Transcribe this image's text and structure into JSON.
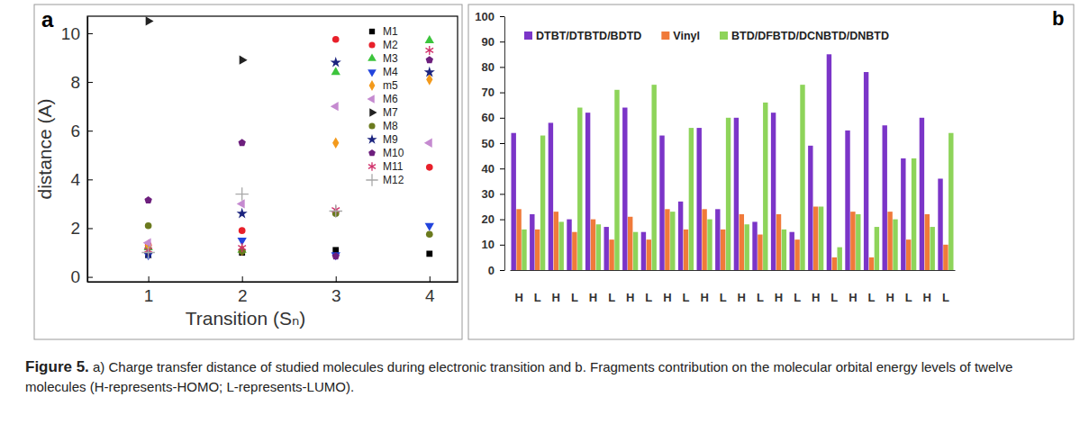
{
  "chart_data": [
    {
      "type": "scatter",
      "panel": "a",
      "x_label": "Transition (Sₙ)",
      "y_label": "distance (A)",
      "x": [
        1,
        2,
        3,
        4
      ],
      "xlim": [
        0.35,
        4.3
      ],
      "xticks": [
        1,
        2,
        3,
        4
      ],
      "ylim": [
        -0.2,
        10.7
      ],
      "yticks": [
        0,
        2,
        4,
        6,
        8,
        10
      ],
      "legend": "top-right",
      "series": [
        {
          "name": "M1",
          "color": "#000000",
          "marker": "square",
          "values": [
            0.9,
            1.0,
            1.1,
            0.95
          ]
        },
        {
          "name": "M2",
          "color": "#e8202a",
          "marker": "circle",
          "values": [
            1.3,
            1.9,
            9.75,
            4.5
          ]
        },
        {
          "name": "M3",
          "color": "#3cc43c",
          "marker": "triangle-up",
          "values": [
            1.2,
            1.1,
            8.4,
            9.7
          ]
        },
        {
          "name": "M4",
          "color": "#2244dd",
          "marker": "triangle-down",
          "values": [
            0.9,
            1.5,
            0.9,
            2.1
          ]
        },
        {
          "name": "m5",
          "color": "#f39a1c",
          "marker": "diamond",
          "values": [
            1.3,
            1.1,
            5.5,
            8.1
          ]
        },
        {
          "name": "M6",
          "color": "#c58ad0",
          "marker": "triangle-left",
          "values": [
            1.4,
            3.0,
            7.0,
            5.5
          ]
        },
        {
          "name": "M7",
          "color": "#222222",
          "marker": "triangle-right",
          "values": [
            10.5,
            8.9,
            null,
            null
          ]
        },
        {
          "name": "M8",
          "color": "#6b7a1e",
          "marker": "circle",
          "values": [
            2.1,
            1.05,
            2.6,
            1.75
          ]
        },
        {
          "name": "M9",
          "color": "#1b237e",
          "marker": "star",
          "values": [
            0.95,
            2.6,
            8.8,
            8.4
          ]
        },
        {
          "name": "M10",
          "color": "#6d1f7d",
          "marker": "pentagon",
          "values": [
            3.15,
            5.5,
            0.85,
            8.9
          ]
        },
        {
          "name": "M11",
          "color": "#d0306a",
          "marker": "asterisk",
          "values": [
            1.1,
            1.2,
            2.75,
            9.3
          ]
        },
        {
          "name": "M12",
          "color": "#a8a8a8",
          "marker": "plus",
          "values": [
            1.0,
            3.4,
            2.7,
            null
          ]
        }
      ]
    },
    {
      "type": "bar",
      "panel": "b",
      "legend": "top",
      "categories": [
        "H",
        "L",
        "H",
        "L",
        "H",
        "L",
        "H",
        "L",
        "H",
        "L",
        "H",
        "L",
        "H",
        "L",
        "H",
        "L",
        "H",
        "L",
        "H",
        "L",
        "H",
        "L",
        "H",
        "L"
      ],
      "ylim": [
        0,
        100
      ],
      "yticks": [
        0,
        10,
        20,
        30,
        40,
        50,
        60,
        70,
        80,
        90,
        100
      ],
      "series": [
        {
          "name": "DTBT/DTBTD/BDTD",
          "color": "#7b35c8",
          "values": [
            54,
            22,
            58,
            20,
            62,
            17,
            64,
            15,
            53,
            27,
            56,
            24,
            60,
            19,
            62,
            15,
            49,
            85,
            55,
            78,
            57,
            44,
            60,
            36
          ]
        },
        {
          "name": "Vinyl",
          "color": "#f07a3a",
          "values": [
            24,
            16,
            23,
            15,
            20,
            12,
            21,
            12,
            24,
            16,
            24,
            16,
            22,
            14,
            22,
            12,
            25,
            5,
            23,
            5,
            23,
            12,
            22,
            10
          ]
        },
        {
          "name": "BTD/DFBTD/DCNBTD/DNBTD",
          "color": "#8ed45a",
          "values": [
            16,
            53,
            19,
            64,
            18,
            71,
            15,
            73,
            23,
            56,
            20,
            60,
            18,
            66,
            16,
            73,
            25,
            9,
            22,
            17,
            20,
            44,
            17,
            54
          ]
        }
      ]
    }
  ],
  "caption": {
    "label": "Figure 5.",
    "text": "a) Charge transfer distance of studied molecules during electronic transition and b. Fragments contribution on the molecular orbital energy levels of twelve molecules (H-represents-HOMO; L-represents-LUMO)."
  }
}
